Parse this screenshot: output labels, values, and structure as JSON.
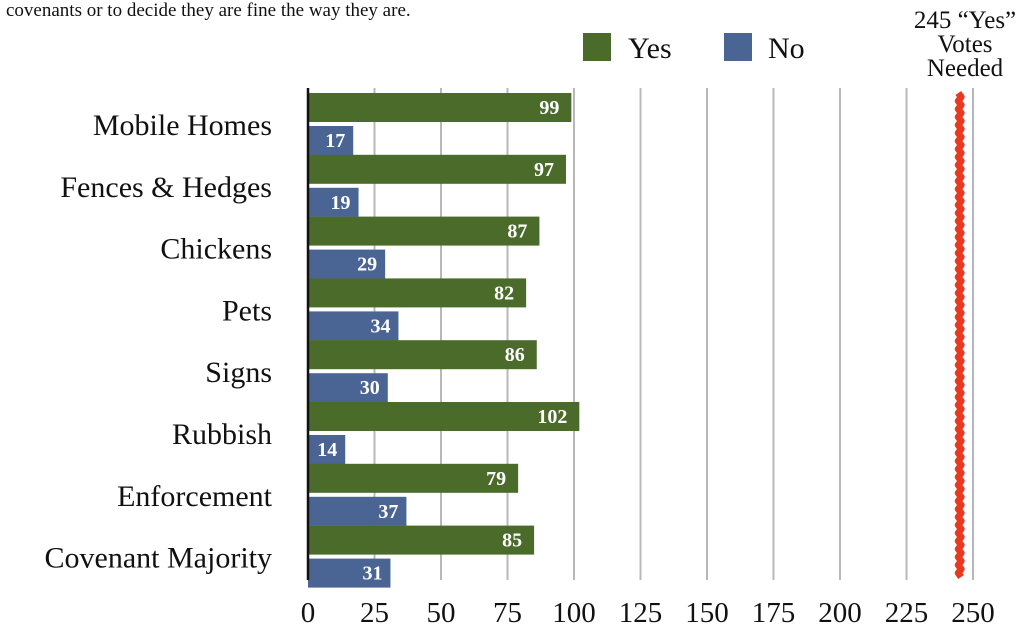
{
  "intro_text": "covenants or to decide they are fine the way they are.",
  "chart_data": {
    "type": "bar",
    "orientation": "horizontal",
    "categories": [
      "Mobile Homes",
      "Fences & Hedges",
      "Chickens",
      "Pets",
      "Signs",
      "Rubbish",
      "Enforcement",
      "Covenant Majority"
    ],
    "series": [
      {
        "name": "Yes",
        "color": "#4a6b2a",
        "values": [
          99,
          97,
          87,
          82,
          86,
          102,
          79,
          85
        ]
      },
      {
        "name": "No",
        "color": "#4a6594",
        "values": [
          17,
          19,
          29,
          34,
          30,
          14,
          37,
          31
        ]
      }
    ],
    "xlim": [
      0,
      250
    ],
    "x_ticks": [
      0,
      25,
      50,
      75,
      100,
      125,
      150,
      175,
      200,
      225,
      250
    ],
    "grid": "vertical",
    "legend_position": "top",
    "data_labels": true,
    "threshold": {
      "value": 245,
      "color": "#e8391f",
      "label_lines": [
        "245 “Yes”",
        "Votes",
        "Needed"
      ]
    }
  }
}
